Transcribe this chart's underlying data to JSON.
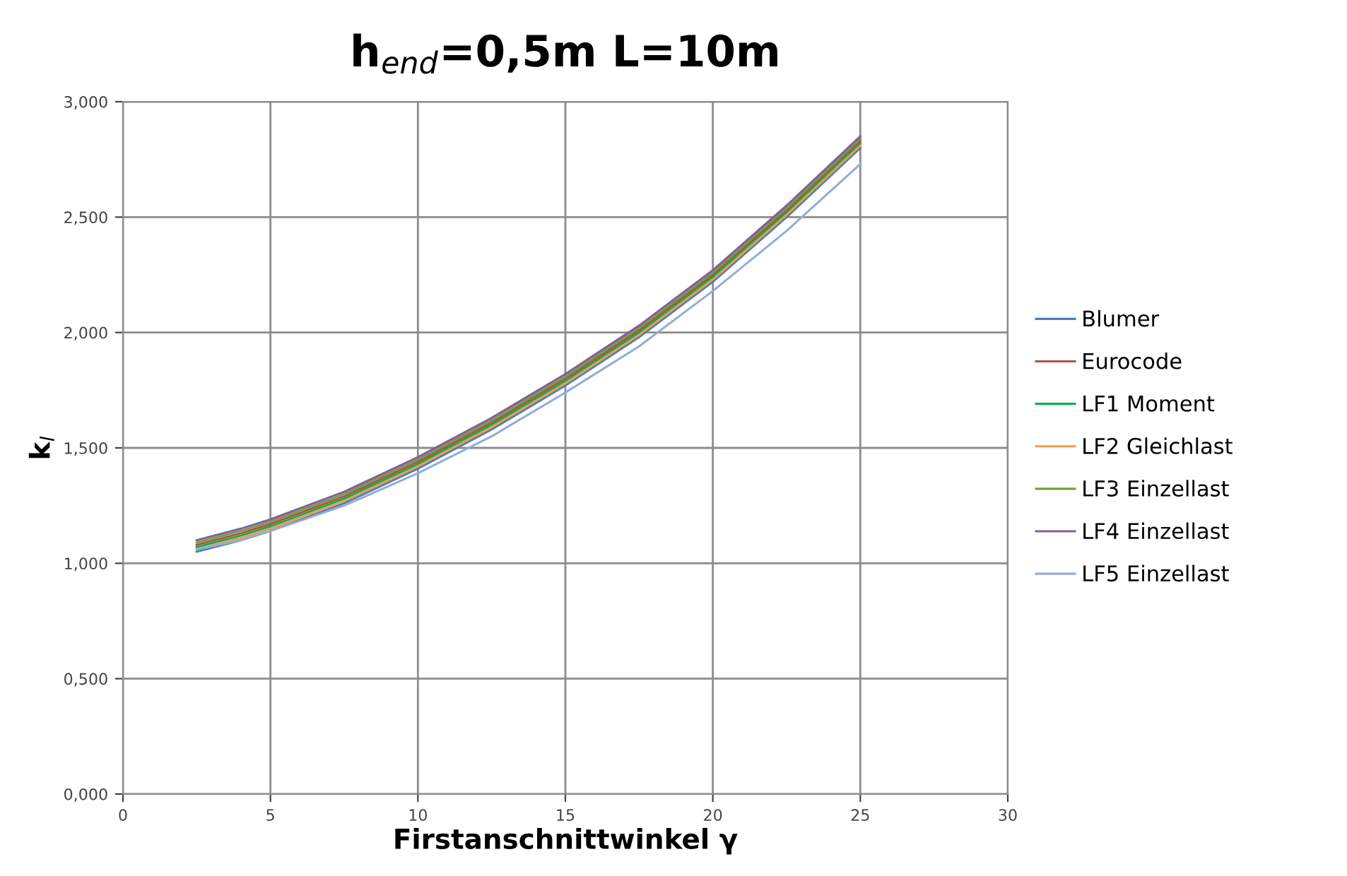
{
  "chart_data": {
    "type": "line",
    "title": "h$_{end}$=0,5m L=10m",
    "xlabel": "Firstanschnittwinkel γ",
    "ylabel": "k$_{l}$",
    "x": [
      2.5,
      4,
      5,
      7.5,
      10,
      12.5,
      15,
      17.5,
      20,
      22.5,
      25
    ],
    "series": [
      {
        "name": "Blumer",
        "color": "#4a7ebb",
        "values": [
          1.05,
          1.1,
          1.14,
          1.26,
          1.41,
          1.58,
          1.77,
          1.98,
          2.22,
          2.5,
          2.8
        ]
      },
      {
        "name": "Eurocode",
        "color": "#be4b48",
        "values": [
          1.08,
          1.13,
          1.17,
          1.29,
          1.44,
          1.61,
          1.8,
          2.01,
          2.25,
          2.53,
          2.83
        ]
      },
      {
        "name": "LF1 Moment",
        "color": "#00b050",
        "values": [
          1.07,
          1.12,
          1.16,
          1.28,
          1.43,
          1.6,
          1.79,
          2.0,
          2.24,
          2.52,
          2.82
        ]
      },
      {
        "name": "LF2 Gleichlast",
        "color": "#f79646",
        "values": [
          1.06,
          1.11,
          1.15,
          1.27,
          1.42,
          1.59,
          1.78,
          1.99,
          2.23,
          2.51,
          2.81
        ]
      },
      {
        "name": "LF3 Einzellast",
        "color": "#77a03a",
        "values": [
          1.09,
          1.14,
          1.18,
          1.3,
          1.45,
          1.62,
          1.81,
          2.02,
          2.26,
          2.54,
          2.84
        ]
      },
      {
        "name": "LF4 Einzellast",
        "color": "#7f609f",
        "values": [
          1.1,
          1.15,
          1.19,
          1.31,
          1.46,
          1.63,
          1.82,
          2.03,
          2.27,
          2.55,
          2.85
        ]
      },
      {
        "name": "LF5 Einzellast",
        "color": "#95acd6",
        "values": [
          1.06,
          1.1,
          1.14,
          1.25,
          1.39,
          1.55,
          1.74,
          1.94,
          2.18,
          2.44,
          2.73
        ]
      }
    ],
    "xlim": [
      0,
      30
    ],
    "xticks": [
      0,
      5,
      10,
      15,
      20,
      25,
      30
    ],
    "ylim": [
      0,
      3
    ],
    "yticks": [
      {
        "value": 0,
        "label": "0,000"
      },
      {
        "value": 0.5,
        "label": "0,500"
      },
      {
        "value": 1,
        "label": "1,000"
      },
      {
        "value": 1.5,
        "label": "1,500"
      },
      {
        "value": 2,
        "label": "2,000"
      },
      {
        "value": 2.5,
        "label": "2,500"
      },
      {
        "value": 3,
        "label": "3,000"
      }
    ],
    "grid": true,
    "legend": "right",
    "marker": "none",
    "line_style": "solid"
  }
}
